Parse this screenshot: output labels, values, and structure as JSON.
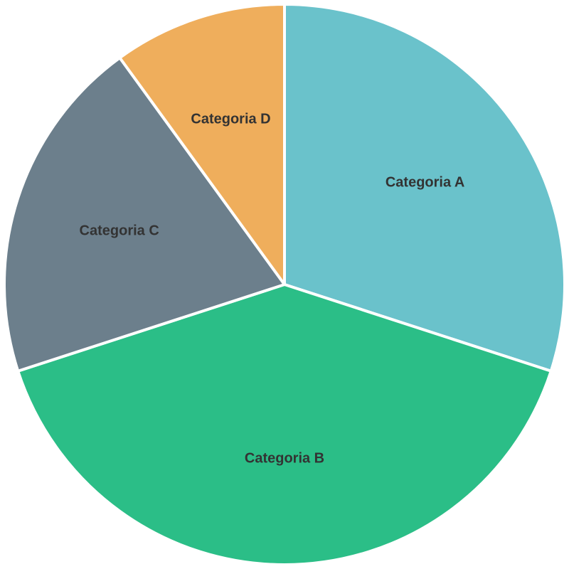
{
  "chart_data": {
    "type": "pie",
    "title": "",
    "start_angle_deg": 90,
    "direction": "clockwise",
    "legend": "none",
    "slices": [
      {
        "label": "Categoria A",
        "value": 30,
        "color": "#6AC2CB"
      },
      {
        "label": "Categoria B",
        "value": 40,
        "color": "#2BBE87"
      },
      {
        "label": "Categoria C",
        "value": 20,
        "color": "#6C7F8C"
      },
      {
        "label": "Categoria D",
        "value": 10,
        "color": "#EFAE5C"
      }
    ]
  }
}
